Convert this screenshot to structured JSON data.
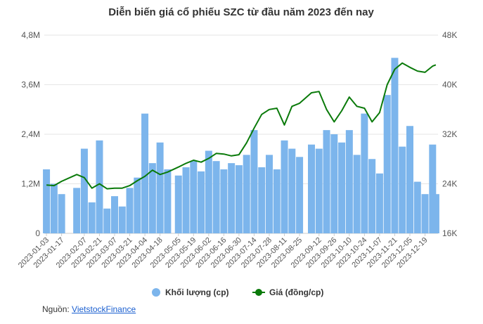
{
  "chart_data": {
    "type": "bar+line",
    "title": "Diễn biến giá cổ phiếu SZC từ đầu năm 2023 đến nay",
    "y_left": {
      "ticks": [
        "0",
        "1,2M",
        "2,4M",
        "3,6M",
        "4,8M"
      ],
      "range": [
        0,
        4800000
      ]
    },
    "y_right": {
      "ticks": [
        "16K",
        "24K",
        "32K",
        "40K",
        "48K"
      ],
      "range": [
        16000,
        48000
      ]
    },
    "x_ticks": [
      "2023-01-03",
      "2023-01-17",
      "2023-02-07",
      "2023-02-21",
      "2023-03-07",
      "2023-03-21",
      "2023-04-04",
      "2023-04-18",
      "2023-05-05",
      "2023-05-19",
      "2023-06-02",
      "2023-06-16",
      "2023-06-30",
      "2023-07-14",
      "2023-07-28",
      "2023-08-11",
      "2023-08-25",
      "2023-09-12",
      "2023-09-26",
      "2023-10-10",
      "2023-10-24",
      "2023-11-07",
      "2023-11-21",
      "2023-12-05",
      "2023-12-19"
    ],
    "grid": true,
    "legend": "bottom-center",
    "series": [
      {
        "name": "Khối lượng (cp)",
        "type": "bar",
        "axis": "left",
        "color": "#7cb5ec",
        "points": [
          [
            "2023-01-03",
            1550000
          ],
          [
            "2023-01-10",
            1200000
          ],
          [
            "2023-01-17",
            950000
          ],
          [
            "2023-01-31",
            1100000
          ],
          [
            "2023-02-07",
            2050000
          ],
          [
            "2023-02-14",
            750000
          ],
          [
            "2023-02-21",
            2250000
          ],
          [
            "2023-02-28",
            600000
          ],
          [
            "2023-03-07",
            900000
          ],
          [
            "2023-03-14",
            650000
          ],
          [
            "2023-03-21",
            1100000
          ],
          [
            "2023-03-28",
            1350000
          ],
          [
            "2023-04-04",
            2900000
          ],
          [
            "2023-04-11",
            1700000
          ],
          [
            "2023-04-18",
            2200000
          ],
          [
            "2023-04-25",
            1550000
          ],
          [
            "2023-05-05",
            1400000
          ],
          [
            "2023-05-12",
            1600000
          ],
          [
            "2023-05-19",
            1750000
          ],
          [
            "2023-05-26",
            1500000
          ],
          [
            "2023-06-02",
            2000000
          ],
          [
            "2023-06-09",
            1750000
          ],
          [
            "2023-06-16",
            1550000
          ],
          [
            "2023-06-23",
            1700000
          ],
          [
            "2023-06-30",
            1650000
          ],
          [
            "2023-07-07",
            1900000
          ],
          [
            "2023-07-14",
            2500000
          ],
          [
            "2023-07-21",
            1600000
          ],
          [
            "2023-07-28",
            1900000
          ],
          [
            "2023-08-04",
            1550000
          ],
          [
            "2023-08-11",
            2250000
          ],
          [
            "2023-08-18",
            2050000
          ],
          [
            "2023-08-25",
            1850000
          ],
          [
            "2023-09-05",
            2150000
          ],
          [
            "2023-09-12",
            2050000
          ],
          [
            "2023-09-19",
            2500000
          ],
          [
            "2023-09-26",
            2400000
          ],
          [
            "2023-10-03",
            2200000
          ],
          [
            "2023-10-10",
            2500000
          ],
          [
            "2023-10-17",
            1900000
          ],
          [
            "2023-10-24",
            2900000
          ],
          [
            "2023-10-31",
            1800000
          ],
          [
            "2023-11-07",
            1450000
          ],
          [
            "2023-11-14",
            3350000
          ],
          [
            "2023-11-21",
            4250000
          ],
          [
            "2023-11-28",
            2100000
          ],
          [
            "2023-12-05",
            2600000
          ],
          [
            "2023-12-12",
            1250000
          ],
          [
            "2023-12-19",
            950000
          ],
          [
            "2023-12-26",
            2150000
          ],
          [
            "2023-12-29",
            950000
          ]
        ]
      },
      {
        "name": "Giá (đồng/cp)",
        "type": "line",
        "axis": "right",
        "color": "#0a7a0a",
        "points": [
          [
            "2023-01-03",
            23800
          ],
          [
            "2023-01-10",
            23700
          ],
          [
            "2023-01-17",
            24400
          ],
          [
            "2023-01-31",
            25500
          ],
          [
            "2023-02-07",
            25000
          ],
          [
            "2023-02-14",
            23300
          ],
          [
            "2023-02-21",
            24000
          ],
          [
            "2023-02-28",
            23200
          ],
          [
            "2023-03-07",
            23300
          ],
          [
            "2023-03-14",
            23300
          ],
          [
            "2023-03-21",
            23700
          ],
          [
            "2023-03-28",
            24500
          ],
          [
            "2023-04-04",
            25200
          ],
          [
            "2023-04-11",
            26200
          ],
          [
            "2023-04-18",
            25500
          ],
          [
            "2023-04-25",
            25900
          ],
          [
            "2023-05-05",
            26700
          ],
          [
            "2023-05-12",
            27300
          ],
          [
            "2023-05-19",
            27800
          ],
          [
            "2023-05-26",
            27500
          ],
          [
            "2023-06-02",
            28100
          ],
          [
            "2023-06-09",
            28900
          ],
          [
            "2023-06-16",
            28800
          ],
          [
            "2023-06-23",
            28500
          ],
          [
            "2023-06-30",
            28700
          ],
          [
            "2023-07-07",
            30600
          ],
          [
            "2023-07-14",
            33000
          ],
          [
            "2023-07-21",
            35200
          ],
          [
            "2023-07-28",
            36000
          ],
          [
            "2023-08-04",
            36200
          ],
          [
            "2023-08-11",
            33500
          ],
          [
            "2023-08-18",
            36500
          ],
          [
            "2023-08-25",
            37000
          ],
          [
            "2023-09-05",
            38700
          ],
          [
            "2023-09-12",
            38900
          ],
          [
            "2023-09-19",
            36000
          ],
          [
            "2023-09-26",
            34000
          ],
          [
            "2023-10-03",
            35800
          ],
          [
            "2023-10-10",
            38000
          ],
          [
            "2023-10-17",
            36500
          ],
          [
            "2023-10-24",
            36200
          ],
          [
            "2023-10-31",
            34000
          ],
          [
            "2023-11-07",
            35500
          ],
          [
            "2023-11-14",
            40000
          ],
          [
            "2023-11-21",
            42500
          ],
          [
            "2023-11-28",
            43500
          ],
          [
            "2023-12-05",
            42800
          ],
          [
            "2023-12-12",
            42200
          ],
          [
            "2023-12-19",
            42000
          ],
          [
            "2023-12-26",
            43000
          ],
          [
            "2023-12-29",
            43200
          ]
        ]
      }
    ]
  },
  "source": {
    "prefix": "Nguồn: ",
    "link": "VietstockFinance"
  }
}
